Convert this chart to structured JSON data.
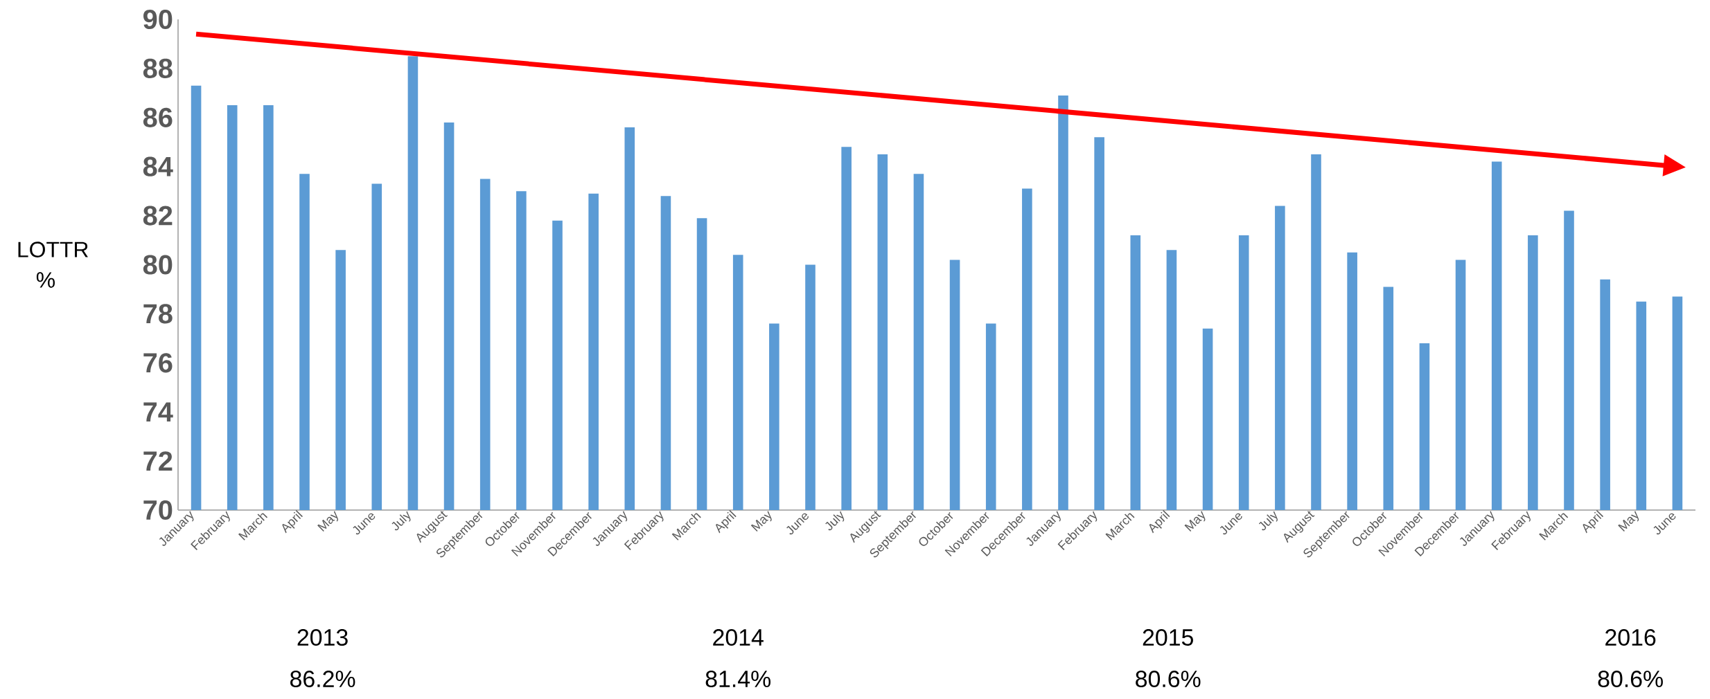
{
  "chart_data": {
    "type": "bar",
    "ylabel": "LOTTR %",
    "categories": [
      "January",
      "February",
      "March",
      "April",
      "May",
      "June",
      "July",
      "August",
      "September",
      "October",
      "November",
      "December",
      "January",
      "February",
      "March",
      "April",
      "May",
      "June",
      "July",
      "August",
      "September",
      "October",
      "November",
      "December",
      "January",
      "February",
      "March",
      "April",
      "May",
      "June",
      "July",
      "August",
      "September",
      "October",
      "November",
      "December",
      "January",
      "February",
      "March",
      "April",
      "May",
      "June"
    ],
    "series": [
      {
        "color": "#5b9bd5",
        "values": [
          87.3,
          86.5,
          86.5,
          83.7,
          80.6,
          83.3,
          88.5,
          85.8,
          83.5,
          83.0,
          81.8,
          82.9,
          85.6,
          82.8,
          81.9,
          80.4,
          77.6,
          80.0,
          84.8,
          84.5,
          83.7,
          80.2,
          77.6,
          83.1,
          86.9,
          85.2,
          81.2,
          80.6,
          77.4,
          81.2,
          82.4,
          84.5,
          80.5,
          79.1,
          76.8,
          80.2,
          84.2,
          81.2,
          82.2,
          79.4,
          78.5,
          78.7
        ]
      },
      {
        "type": "line",
        "color": "#ff0000",
        "values": [
          89.4,
          null,
          null,
          null,
          null,
          null,
          null,
          null,
          null,
          null,
          null,
          null,
          null,
          null,
          null,
          null,
          null,
          null,
          null,
          null,
          null,
          null,
          null,
          null,
          null,
          null,
          null,
          null,
          null,
          null,
          null,
          null,
          null,
          null,
          null,
          null,
          null,
          null,
          null,
          null,
          null,
          84.0
        ]
      }
    ],
    "ylim": [
      70,
      90
    ],
    "yticks": [
      70,
      72,
      74,
      76,
      78,
      80,
      82,
      84,
      86,
      88,
      90
    ],
    "annotations": [
      "2013",
      "86.2%",
      "2014",
      "81.4%",
      "2015",
      "80.6%",
      "2016",
      "80.6%"
    ]
  }
}
